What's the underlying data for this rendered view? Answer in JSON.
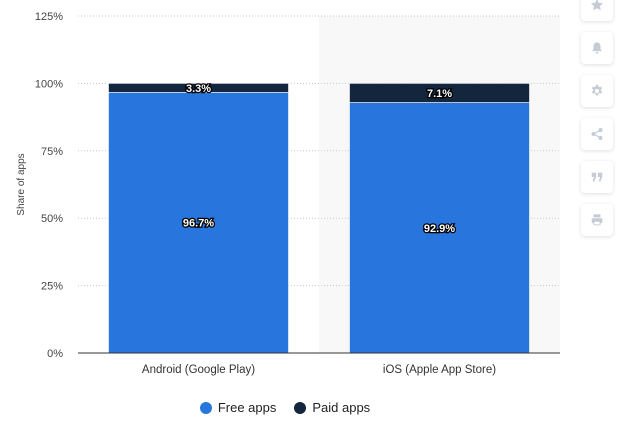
{
  "chart_data": {
    "type": "bar",
    "stacked": true,
    "categories": [
      "Android (Google Play)",
      "iOS (Apple App Store)"
    ],
    "series": [
      {
        "name": "Free apps",
        "values": [
          96.7,
          92.9
        ],
        "color": "#2876dd"
      },
      {
        "name": "Paid apps",
        "values": [
          3.3,
          7.1
        ],
        "color": "#14253e"
      }
    ],
    "data_labels": [
      [
        "96.7%",
        "92.9%"
      ],
      [
        "3.3%",
        "7.1%"
      ]
    ],
    "ylabel": "Share of apps",
    "ylim": [
      0,
      125
    ],
    "yticks": [
      0,
      25,
      50,
      75,
      100,
      125
    ],
    "ytick_labels": [
      "0%",
      "25%",
      "50%",
      "75%",
      "100%",
      "125%"
    ],
    "grid": true,
    "legend_position": "bottom-center"
  },
  "toolbar": {
    "icons": [
      "star-icon",
      "bell-icon",
      "gear-icon",
      "share-icon",
      "quote-icon",
      "print-icon"
    ]
  }
}
